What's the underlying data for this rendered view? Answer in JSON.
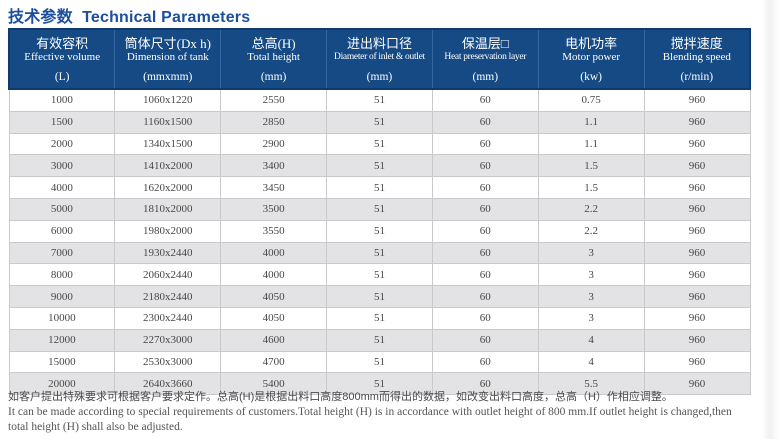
{
  "page": {
    "title": "技术参数  Technical Parameters"
  },
  "table": {
    "columns": [
      {
        "zh": "有效容积",
        "en": "Effective volume",
        "unit": "(L)"
      },
      {
        "zh": "筒体尺寸(Dx h)",
        "en": "Dimension of tank",
        "unit": "(mmxmm)"
      },
      {
        "zh": "总高(H)",
        "en": "Total height",
        "unit": "(mm)"
      },
      {
        "zh": "进出料口径",
        "en": "Diameter of inlet & outlet",
        "unit": "(mm)"
      },
      {
        "zh": "保温层□",
        "en": "Heat preservation layer",
        "unit": "(mm)"
      },
      {
        "zh": "电机功率",
        "en": "Motor power",
        "unit": "(kw)"
      },
      {
        "zh": "搅拌速度",
        "en": "Blending speed",
        "unit": "(r/min)"
      }
    ],
    "rows": [
      [
        "1000",
        "1060x1220",
        "2550",
        "51",
        "60",
        "0.75",
        "960"
      ],
      [
        "1500",
        "1160x1500",
        "2850",
        "51",
        "60",
        "1.1",
        "960"
      ],
      [
        "2000",
        "1340x1500",
        "2900",
        "51",
        "60",
        "1.1",
        "960"
      ],
      [
        "3000",
        "1410x2000",
        "3400",
        "51",
        "60",
        "1.5",
        "960"
      ],
      [
        "4000",
        "1620x2000",
        "3450",
        "51",
        "60",
        "1.5",
        "960"
      ],
      [
        "5000",
        "1810x2000",
        "3500",
        "51",
        "60",
        "2.2",
        "960"
      ],
      [
        "6000",
        "1980x2000",
        "3550",
        "51",
        "60",
        "2.2",
        "960"
      ],
      [
        "7000",
        "1930x2440",
        "4000",
        "51",
        "60",
        "3",
        "960"
      ],
      [
        "8000",
        "2060x2440",
        "4000",
        "51",
        "60",
        "3",
        "960"
      ],
      [
        "9000",
        "2180x2440",
        "4050",
        "51",
        "60",
        "3",
        "960"
      ],
      [
        "10000",
        "2300x2440",
        "4050",
        "51",
        "60",
        "3",
        "960"
      ],
      [
        "12000",
        "2270x3000",
        "4600",
        "51",
        "60",
        "4",
        "960"
      ],
      [
        "15000",
        "2530x3000",
        "4700",
        "51",
        "60",
        "4",
        "960"
      ],
      [
        "20000",
        "2640x3660",
        "5400",
        "51",
        "60",
        "5.5",
        "960"
      ]
    ]
  },
  "footnote": {
    "zh": "如客户提出特殊要求可根据客户要求定作。总高(H)是根据出料口高度800mm而得出的数据，如改变出料口高度，总高（H）作相应调整。",
    "en_line1": "It can be made according to special requirements of customers.Total height (H) is in accordance with outlet height of 800 mm.If outlet height is changed,then",
    "en_line2": "total height (H) shall also be adjusted."
  },
  "colors": {
    "title_blue": "#1b4f9e",
    "header_bg": "#164a85",
    "header_separator": "#3567a0",
    "header_outline": "#0e3a6e",
    "row_alt_bg": "#e3e3e5",
    "cell_border": "#c9c9c9",
    "data_text": "#474747"
  }
}
